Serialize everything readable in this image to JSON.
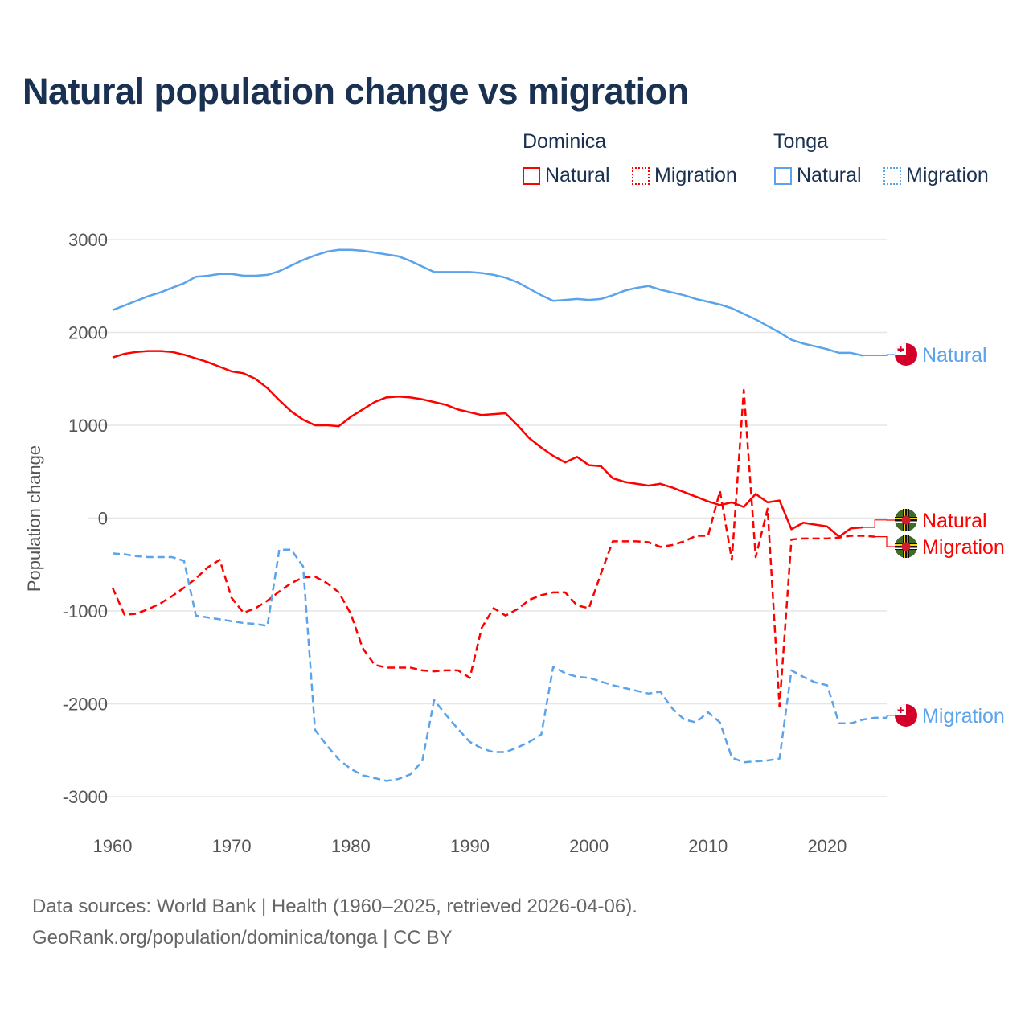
{
  "chart_data": {
    "type": "line",
    "title": "Natural population change vs migration",
    "ylabel": "Population change",
    "xlabel": "",
    "xlim": [
      1960,
      2025
    ],
    "ylim": [
      -3000,
      3000
    ],
    "x_ticks": [
      "1960",
      "1970",
      "1980",
      "1990",
      "2000",
      "2010",
      "2020"
    ],
    "y_ticks": [
      "3000",
      "2000",
      "1000",
      "0",
      "-1000",
      "-2000",
      "-3000"
    ],
    "grid": true,
    "legend": {
      "placement": "top-right",
      "groups": [
        {
          "country": "Dominica",
          "items": [
            "Natural",
            "Migration"
          ]
        },
        {
          "country": "Tonga",
          "items": [
            "Natural",
            "Migration"
          ]
        }
      ]
    },
    "colors": {
      "Dominica": "#ff0000",
      "Tonga": "#5ba3ea"
    },
    "start_year": 1960,
    "series": [
      {
        "name": "Tonga Natural",
        "country": "Tonga",
        "kind": "Natural",
        "end_label": "Natural",
        "flag": "tonga",
        "values": [
          2240,
          2290,
          2340,
          2390,
          2430,
          2480,
          2530,
          2600,
          2610,
          2630,
          2630,
          2610,
          2610,
          2620,
          2660,
          2720,
          2780,
          2830,
          2870,
          2890,
          2890,
          2880,
          2860,
          2840,
          2820,
          2770,
          2710,
          2650,
          2650,
          2650,
          2650,
          2640,
          2620,
          2590,
          2540,
          2470,
          2400,
          2340,
          2350,
          2360,
          2350,
          2360,
          2400,
          2450,
          2480,
          2500,
          2460,
          2430,
          2400,
          2360,
          2330,
          2300,
          2260,
          2200,
          2140,
          2070,
          2000,
          1920,
          1880,
          1850,
          1820,
          1780,
          1780,
          1750
        ],
        "projection": [
          1750,
          1750
        ]
      },
      {
        "name": "Dominica Natural",
        "country": "Dominica",
        "kind": "Natural",
        "end_label": "Natural",
        "flag": "dominica",
        "values": [
          1730,
          1770,
          1790,
          1800,
          1800,
          1790,
          1760,
          1720,
          1680,
          1630,
          1580,
          1560,
          1500,
          1400,
          1270,
          1150,
          1060,
          1000,
          1000,
          990,
          1090,
          1170,
          1250,
          1300,
          1310,
          1300,
          1280,
          1250,
          1220,
          1170,
          1140,
          1110,
          1120,
          1130,
          1000,
          860,
          760,
          670,
          600,
          660,
          570,
          560,
          430,
          390,
          370,
          350,
          370,
          330,
          280,
          230,
          180,
          140,
          170,
          120,
          260,
          170,
          190,
          -120,
          -50,
          -70,
          -90,
          -200,
          -110,
          -100
        ],
        "projection": [
          -20,
          -20
        ]
      },
      {
        "name": "Dominica Migration",
        "country": "Dominica",
        "kind": "Migration",
        "end_label": "Migration",
        "flag": "dominica",
        "values": [
          -750,
          -1040,
          -1030,
          -980,
          -920,
          -840,
          -750,
          -650,
          -530,
          -450,
          -860,
          -1020,
          -970,
          -890,
          -790,
          -700,
          -640,
          -630,
          -700,
          -800,
          -1030,
          -1400,
          -1580,
          -1610,
          -1610,
          -1610,
          -1640,
          -1650,
          -1640,
          -1640,
          -1720,
          -1180,
          -970,
          -1050,
          -980,
          -880,
          -830,
          -800,
          -800,
          -940,
          -970,
          -600,
          -250,
          -250,
          -250,
          -260,
          -310,
          -290,
          -250,
          -190,
          -190,
          290,
          -450,
          1380,
          -420,
          100,
          -2030,
          -230,
          -220,
          -220,
          -220,
          -210,
          -190,
          -190,
          -200
        ],
        "projection": [
          -310
        ]
      },
      {
        "name": "Tonga Migration",
        "country": "Tonga",
        "kind": "Migration",
        "end_label": "Migration",
        "flag": "tonga",
        "values": [
          -380,
          -390,
          -410,
          -420,
          -420,
          -420,
          -460,
          -1050,
          -1070,
          -1090,
          -1110,
          -1130,
          -1140,
          -1160,
          -340,
          -340,
          -520,
          -2280,
          -2450,
          -2600,
          -2700,
          -2770,
          -2800,
          -2830,
          -2810,
          -2760,
          -2620,
          -1960,
          -2120,
          -2270,
          -2410,
          -2480,
          -2520,
          -2520,
          -2470,
          -2410,
          -2330,
          -1600,
          -1670,
          -1710,
          -1720,
          -1760,
          -1800,
          -1830,
          -1860,
          -1890,
          -1870,
          -2050,
          -2170,
          -2200,
          -2090,
          -2200,
          -2580,
          -2630,
          -2620,
          -2610,
          -2590,
          -1640,
          -1710,
          -1770,
          -1800,
          -2210,
          -2210,
          -2170,
          -2150,
          -2150
        ],
        "projection": []
      }
    ]
  },
  "source": {
    "line1": "Data sources: World Bank | Health (1960–2025, retrieved 2026-04-06).",
    "line2": "GeoRank.org/population/dominica/tonga | CC BY"
  }
}
